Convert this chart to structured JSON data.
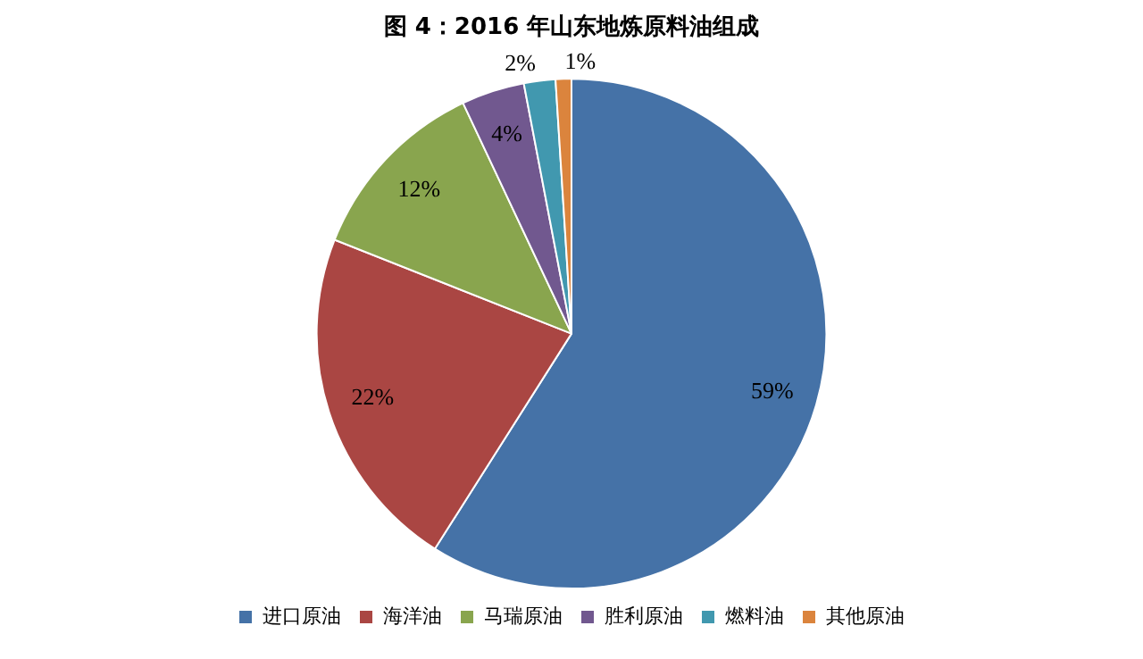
{
  "chart_data": {
    "type": "pie",
    "title": "图 4：2016 年山东地炼原料油组成",
    "categories": [
      "进口原油",
      "海洋油",
      "马瑞原油",
      "胜利原油",
      "燃料油",
      "其他原油"
    ],
    "values": [
      59,
      22,
      12,
      4,
      2,
      1
    ],
    "value_labels": [
      "59%",
      "22%",
      "12%",
      "4%",
      "2%",
      "1%"
    ],
    "colors": [
      "#4572a7",
      "#aa4643",
      "#89a54e",
      "#71588f",
      "#4198af",
      "#db843d"
    ],
    "legend": "bottom"
  }
}
